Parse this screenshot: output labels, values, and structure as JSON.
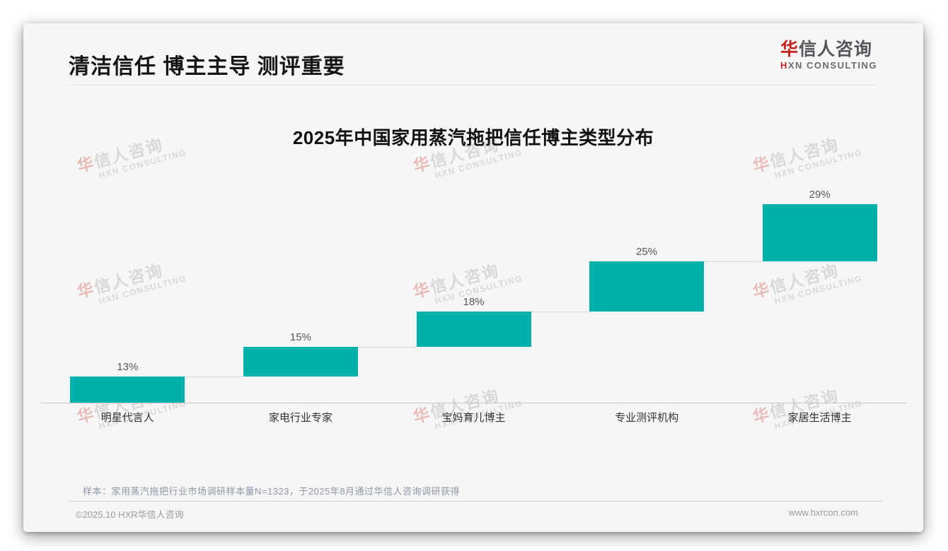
{
  "header": {
    "title": "清洁信任 博主主导 测评重要"
  },
  "logo": {
    "cn_first": "华",
    "cn_rest": "信人咨询",
    "en_first": "H",
    "en_rest": "XN CONSULTING"
  },
  "chart_data": {
    "type": "bar",
    "subtype": "waterfall-steps",
    "title": "2025年中国家用蒸汽拖把信任博主类型分布",
    "categories": [
      "明星代言人",
      "家电行业专家",
      "宝妈育儿博主",
      "专业测评机构",
      "家居生活博主"
    ],
    "values": [
      13,
      15,
      18,
      25,
      29
    ],
    "value_labels": [
      "13%",
      "15%",
      "18%",
      "25%",
      "29%"
    ],
    "unit": "%",
    "bar_color": "#00b1a9",
    "ylim": [
      0,
      100
    ],
    "cumulative": true,
    "grid": false,
    "legend": "none",
    "xlabel": "",
    "ylabel": ""
  },
  "footnote": "样本：家用蒸汽拖把行业市场调研样本量N=1323，于2025年8月通过华信人咨询调研获得",
  "footer": {
    "left": "©2025.10 HXR华信人咨询",
    "right": "www.hxrcon.com"
  },
  "watermark": {
    "cn_first": "华",
    "cn_rest": "信人咨询",
    "en": "HXN CONSULTING"
  }
}
